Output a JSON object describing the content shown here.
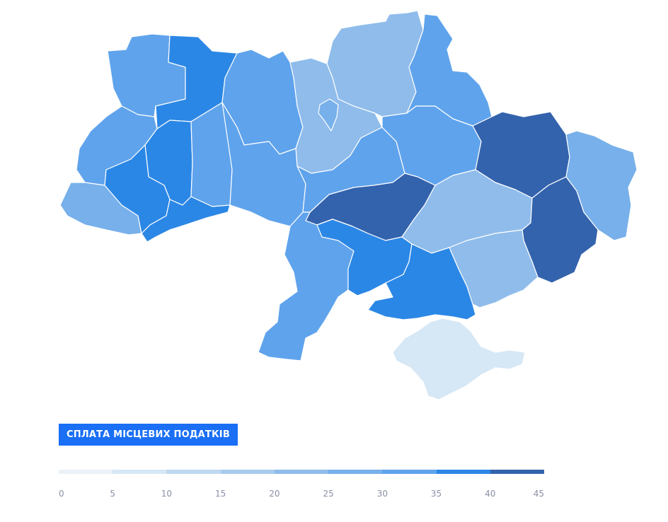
{
  "title": "СПЛАТА МІСЦЕВИХ ПОДАТКІВ",
  "legend": {
    "ticks": [
      "0",
      "5",
      "10",
      "15",
      "20",
      "25",
      "30",
      "35",
      "40",
      "45"
    ],
    "colors": [
      "#eaf1f7",
      "#d6e7f5",
      "#bfd9f1",
      "#a7cbed",
      "#8fbceb",
      "#77b0ea",
      "#5fa3ec",
      "#2b87e5",
      "#3463ad"
    ]
  },
  "regions": [
    {
      "id": "volyn",
      "color": "#5fa3ec"
    },
    {
      "id": "rivne",
      "color": "#2b87e5"
    },
    {
      "id": "zhytomyr",
      "color": "#5fa3ec"
    },
    {
      "id": "kyiv-oblast",
      "color": "#8fbceb"
    },
    {
      "id": "kyiv-city",
      "color": "#77b0ea"
    },
    {
      "id": "chernihiv",
      "color": "#8fbceb"
    },
    {
      "id": "sumy",
      "color": "#5fa3ec"
    },
    {
      "id": "lviv",
      "color": "#5fa3ec"
    },
    {
      "id": "ternopil",
      "color": "#2b87e5"
    },
    {
      "id": "khmelnytskyi",
      "color": "#5fa3ec"
    },
    {
      "id": "vinnytsia",
      "color": "#5fa3ec"
    },
    {
      "id": "cherkasy",
      "color": "#5fa3ec"
    },
    {
      "id": "poltava",
      "color": "#5fa3ec"
    },
    {
      "id": "kharkiv",
      "color": "#3463ad"
    },
    {
      "id": "luhansk",
      "color": "#77b0ea"
    },
    {
      "id": "zakarpattia",
      "color": "#77b0ea"
    },
    {
      "id": "ivano-frankivsk",
      "color": "#2b87e5"
    },
    {
      "id": "chernivtsi",
      "color": "#2b87e5"
    },
    {
      "id": "kirovohrad",
      "color": "#3463ad"
    },
    {
      "id": "dnipropetrovsk",
      "color": "#8fbceb"
    },
    {
      "id": "donetsk",
      "color": "#3463ad"
    },
    {
      "id": "odesa",
      "color": "#5fa3ec"
    },
    {
      "id": "mykolaiv",
      "color": "#2b87e5"
    },
    {
      "id": "kherson",
      "color": "#2b87e5"
    },
    {
      "id": "zaporizhzhia",
      "color": "#8fbceb"
    },
    {
      "id": "crimea",
      "color": "#d6e7f5"
    }
  ]
}
